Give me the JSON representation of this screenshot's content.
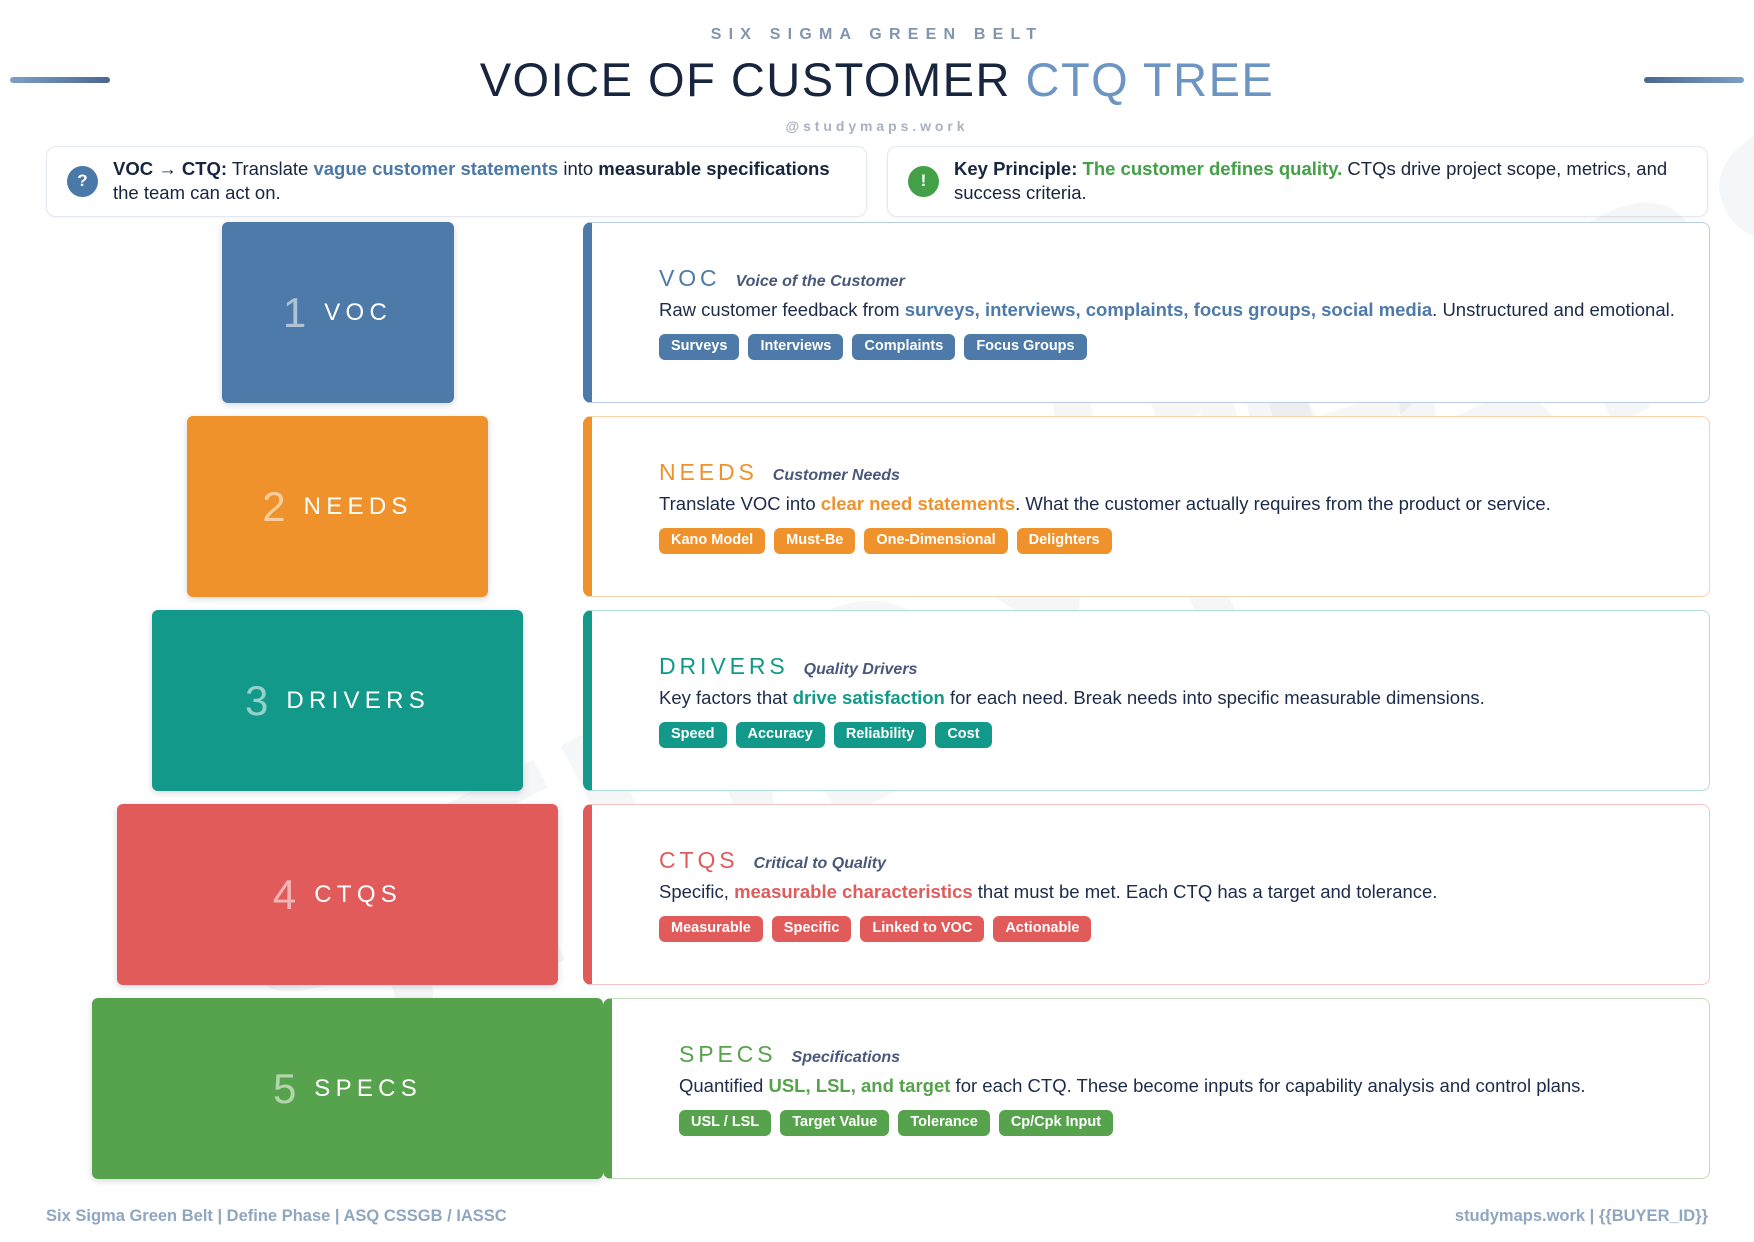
{
  "header": {
    "kicker": "SIX SIGMA GREEN BELT",
    "title_main": "VOICE OF CUSTOMER",
    "title_accent": "CTQ TREE",
    "handle": "@studymaps.work"
  },
  "info_boxes": [
    {
      "icon": "question-icon",
      "icon_char": "?",
      "icon_color": "#4a78a8",
      "highlight_color": "#4a78a8",
      "segments": [
        {
          "t": "VOC → CTQ:",
          "b": true
        },
        {
          "t": " Translate "
        },
        {
          "t": "vague customer statements",
          "hl": true
        },
        {
          "t": " into "
        },
        {
          "t": "measurable specifications",
          "b": true
        },
        {
          "t": " the team can act on."
        }
      ]
    },
    {
      "icon": "exclamation-icon",
      "icon_char": "!",
      "icon_color": "#43a047",
      "highlight_color": "#43a047",
      "segments": [
        {
          "t": "Key Principle:",
          "b": true
        },
        {
          "t": " "
        },
        {
          "t": "The customer defines quality.",
          "hl": true
        },
        {
          "t": " CTQs drive project scope, metrics, and success criteria."
        }
      ]
    }
  ],
  "levels": [
    {
      "num": "1",
      "block_label": "VOC",
      "color": "#4d7aa8",
      "tint": "#b9cee2",
      "title": "VOC",
      "subtitle": "Voice of the Customer",
      "body": [
        {
          "t": "Raw customer feedback from "
        },
        {
          "t": "surveys, interviews, complaints, focus groups, social media",
          "hl": true
        },
        {
          "t": ". Unstructured and emotional."
        }
      ],
      "tags": [
        "Surveys",
        "Interviews",
        "Complaints",
        "Focus Groups"
      ]
    },
    {
      "num": "2",
      "block_label": "NEEDS",
      "color": "#f0922b",
      "tint": "#f7d4ab",
      "title": "NEEDS",
      "subtitle": "Customer Needs",
      "body": [
        {
          "t": "Translate VOC into "
        },
        {
          "t": "clear need statements",
          "hl": true
        },
        {
          "t": ". What the customer actually requires from the product or service."
        }
      ],
      "tags": [
        "Kano Model",
        "Must-Be",
        "One-Dimensional",
        "Delighters"
      ]
    },
    {
      "num": "3",
      "block_label": "DRIVERS",
      "color": "#13998a",
      "tint": "#b0ded8",
      "title": "DRIVERS",
      "subtitle": "Quality Drivers",
      "body": [
        {
          "t": "Key factors that "
        },
        {
          "t": "drive satisfaction",
          "hl": true
        },
        {
          "t": " for each need. Break needs into specific measurable dimensions."
        }
      ],
      "tags": [
        "Speed",
        "Accuracy",
        "Reliability",
        "Cost"
      ]
    },
    {
      "num": "4",
      "block_label": "CTQS",
      "color": "#e15b5b",
      "tint": "#f6c3c3",
      "title": "CTQS",
      "subtitle": "Critical to Quality",
      "body": [
        {
          "t": "Specific, "
        },
        {
          "t": "measurable characteristics",
          "hl": true
        },
        {
          "t": " that must be met. Each CTQ has a target and tolerance."
        }
      ],
      "tags": [
        "Measurable",
        "Specific",
        "Linked to VOC",
        "Actionable"
      ]
    },
    {
      "num": "5",
      "block_label": "SPECS",
      "color": "#57a24d",
      "tint": "#c2ddbc",
      "title": "SPECS",
      "subtitle": "Specifications",
      "body": [
        {
          "t": "Quantified "
        },
        {
          "t": "USL, LSL, and target",
          "hl": true
        },
        {
          "t": " for each CTQ. These become inputs for capability analysis and control plans."
        }
      ],
      "tags": [
        "USL / LSL",
        "Target Value",
        "Tolerance",
        "Cp/Cpk Input"
      ]
    }
  ],
  "watermark": "STUDYMAPS",
  "watermark2": "GB",
  "footer": {
    "left": "Six Sigma Green Belt | Define Phase | ASQ CSSGB / IASSC",
    "right": "studymaps.work | {{BUYER_ID}}"
  }
}
